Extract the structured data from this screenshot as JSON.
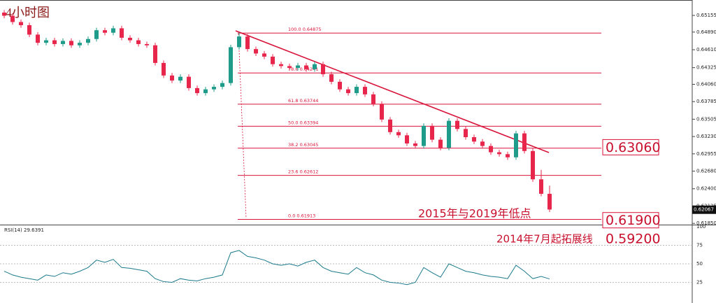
{
  "chart_data": {
    "type": "candlestick",
    "title": "4小时图",
    "ylim": [
      0.6183,
      0.654
    ],
    "yticks": [
      0.65155,
      {
        "value": 0.6489,
        "label": "0.64890"
      },
      {
        "value": 0.6461,
        "label": "0.64610"
      },
      0.64325,
      {
        "value": 0.6406,
        "label": "0.64060"
      },
      0.63785,
      0.63505,
      {
        "value": 0.6323,
        "label": "0.63230"
      },
      0.62955,
      {
        "value": 0.6268,
        "label": "0.62680"
      },
      {
        "value": 0.624,
        "label": "0.62400"
      },
      0.62125,
      {
        "value": 0.6185,
        "label": "0.61850"
      }
    ],
    "up_color": "#1e9b8a",
    "down_color": "#e8264c",
    "open": [
      0.652,
      0.6515,
      0.6505,
      0.65,
      0.6485,
      0.6472,
      0.6476,
      0.647,
      0.6475,
      0.6468,
      0.6472,
      0.6478,
      0.6492,
      0.6488,
      0.6495,
      0.648,
      0.6476,
      0.647,
      0.6468,
      0.644,
      0.642,
      0.6412,
      0.6418,
      0.64,
      0.6392,
      0.6398,
      0.6402,
      0.6408,
      0.6465,
      0.6482,
      0.6462,
      0.6455,
      0.645,
      0.6438,
      0.6435,
      0.6432,
      0.6436,
      0.643,
      0.6438,
      0.6422,
      0.641,
      0.6398,
      0.6392,
      0.6402,
      0.639,
      0.6375,
      0.635,
      0.633,
      0.6325,
      0.6312,
      0.6308,
      0.634,
      0.6318,
      0.6305,
      0.6348,
      0.6335,
      0.6322,
      0.6315,
      0.6308,
      0.6298,
      0.6295,
      0.629,
      0.6328,
      0.63,
      0.6255,
      0.6232
    ],
    "high": [
      0.6524,
      0.6519,
      0.6509,
      0.6504,
      0.6489,
      0.648,
      0.648,
      0.6479,
      0.6479,
      0.6476,
      0.6482,
      0.6496,
      0.6496,
      0.6499,
      0.6499,
      0.6484,
      0.648,
      0.6474,
      0.6472,
      0.6444,
      0.6424,
      0.6422,
      0.6422,
      0.6404,
      0.6402,
      0.6406,
      0.6412,
      0.6469,
      0.6488,
      0.6486,
      0.6466,
      0.6459,
      0.6454,
      0.6442,
      0.6439,
      0.644,
      0.644,
      0.6442,
      0.6442,
      0.6426,
      0.6414,
      0.6402,
      0.6406,
      0.6406,
      0.6394,
      0.6379,
      0.6354,
      0.6334,
      0.6329,
      0.6316,
      0.6344,
      0.6344,
      0.6322,
      0.6352,
      0.6352,
      0.6339,
      0.6326,
      0.6319,
      0.6312,
      0.6302,
      0.6299,
      0.6332,
      0.6332,
      0.6304,
      0.627,
      0.6245
    ],
    "low": [
      0.6511,
      0.6501,
      0.6496,
      0.6481,
      0.6468,
      0.6468,
      0.6466,
      0.6466,
      0.6464,
      0.6464,
      0.6468,
      0.6474,
      0.6484,
      0.6484,
      0.6476,
      0.6472,
      0.6466,
      0.6464,
      0.6436,
      0.6416,
      0.6408,
      0.6408,
      0.6396,
      0.6388,
      0.6388,
      0.6394,
      0.6398,
      0.6404,
      0.6461,
      0.6458,
      0.6451,
      0.6446,
      0.6434,
      0.6431,
      0.6428,
      0.6428,
      0.6426,
      0.6426,
      0.6418,
      0.6406,
      0.6394,
      0.6388,
      0.6388,
      0.6386,
      0.6371,
      0.6346,
      0.6326,
      0.6321,
      0.6308,
      0.6304,
      0.6304,
      0.6314,
      0.6301,
      0.6301,
      0.6331,
      0.6318,
      0.6311,
      0.6304,
      0.6294,
      0.6291,
      0.6286,
      0.6286,
      0.6296,
      0.6251,
      0.6228,
      0.6203
    ],
    "close": [
      0.6515,
      0.6505,
      0.65,
      0.6485,
      0.6472,
      0.6476,
      0.647,
      0.6475,
      0.6468,
      0.6472,
      0.6478,
      0.6492,
      0.6488,
      0.6495,
      0.648,
      0.6476,
      0.647,
      0.6468,
      0.644,
      0.642,
      0.6412,
      0.6418,
      0.64,
      0.6392,
      0.6398,
      0.6402,
      0.6408,
      0.6465,
      0.6482,
      0.6462,
      0.6455,
      0.645,
      0.6438,
      0.6435,
      0.6432,
      0.6436,
      0.643,
      0.6438,
      0.6422,
      0.641,
      0.6398,
      0.6392,
      0.6402,
      0.639,
      0.6375,
      0.635,
      0.633,
      0.6325,
      0.6312,
      0.6308,
      0.634,
      0.6318,
      0.6305,
      0.6348,
      0.6335,
      0.6322,
      0.6315,
      0.6308,
      0.6298,
      0.6295,
      0.629,
      0.6328,
      0.63,
      0.6255,
      0.6232,
      0.6207
    ],
    "current_price": 0.62067,
    "fib_levels": [
      {
        "ratio": "100.0",
        "price": 0.64875
      },
      {
        "ratio": "78.6",
        "price": 0.64241
      },
      {
        "ratio": "61.8",
        "price": 0.63744
      },
      {
        "ratio": "50.0",
        "price": 0.63394
      },
      {
        "ratio": "38.2",
        "price": 0.63045
      },
      {
        "ratio": "23.6",
        "price": 0.62612
      },
      {
        "ratio": "0.0",
        "price": 0.61913
      }
    ],
    "levels": [
      {
        "value": 0.6306,
        "label": "0.63060"
      },
      {
        "value": 0.619,
        "label": "0.61900"
      }
    ],
    "low_note": "2015年与2019年低点",
    "extension_note": "2014年7月起拓展线",
    "extension_level": {
      "value": 0.592,
      "label": "0.59200"
    },
    "rsi": {
      "type": "line",
      "label": "RSI(14)",
      "color": "#1b7a8c",
      "ylim": [
        0,
        100
      ],
      "yticks": [
        25,
        50,
        75,
        100
      ],
      "values": [
        40,
        35,
        32,
        30,
        28,
        35,
        33,
        38,
        36,
        40,
        45,
        55,
        52,
        56,
        45,
        44,
        42,
        40,
        30,
        26,
        25,
        30,
        28,
        27,
        30,
        32,
        35,
        65,
        68,
        60,
        58,
        55,
        50,
        48,
        50,
        47,
        52,
        55,
        45,
        40,
        38,
        36,
        45,
        38,
        35,
        28,
        25,
        24,
        22,
        25,
        45,
        38,
        32,
        50,
        45,
        40,
        38,
        35,
        33,
        32,
        30,
        48,
        40,
        30,
        33,
        29.6391
      ]
    }
  }
}
